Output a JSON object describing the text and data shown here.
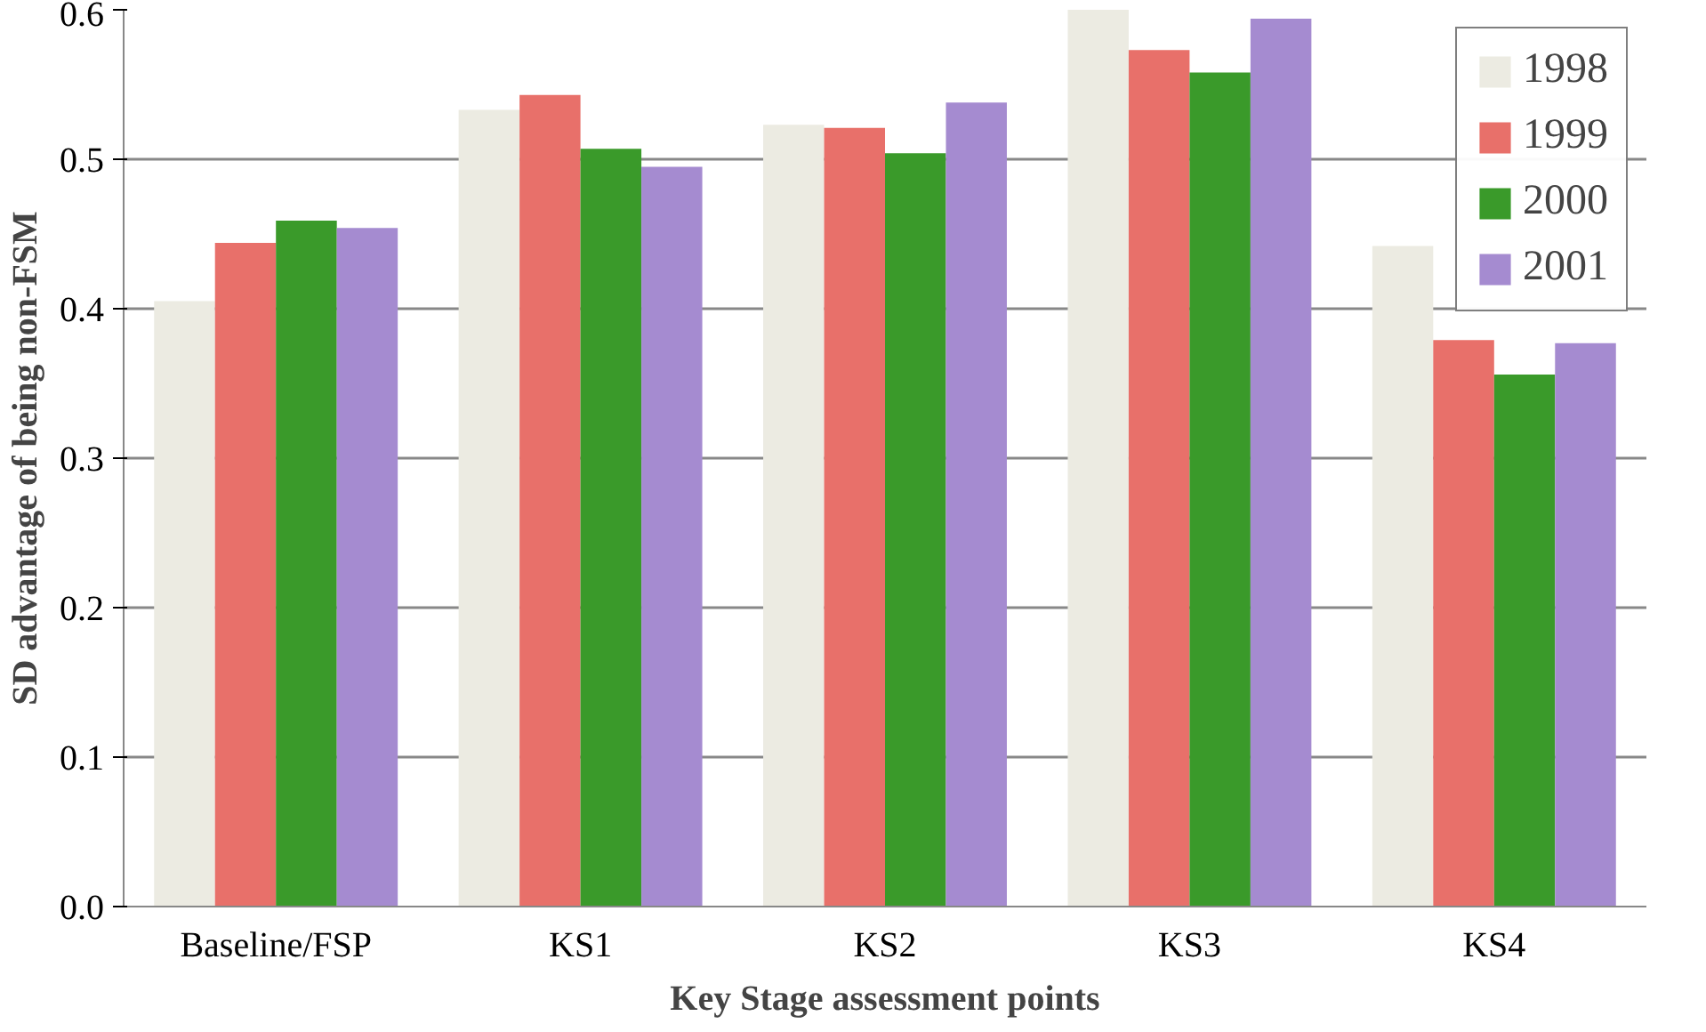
{
  "chart_data": {
    "type": "bar",
    "xlabel": "Key Stage assessment points",
    "ylabel": "SD advantage of being non-FSM",
    "categories": [
      "Baseline/FSP",
      "KS1",
      "KS2",
      "KS3",
      "KS4"
    ],
    "series": [
      {
        "name": "1998",
        "color": "#ecebe2",
        "values": [
          0.405,
          0.533,
          0.523,
          0.6,
          0.442
        ]
      },
      {
        "name": "1999",
        "color": "#e8706a",
        "values": [
          0.444,
          0.543,
          0.521,
          0.573,
          0.379
        ]
      },
      {
        "name": "2000",
        "color": "#3a9a2a",
        "values": [
          0.459,
          0.507,
          0.504,
          0.558,
          0.356
        ]
      },
      {
        "name": "2001",
        "color": "#a58bd0",
        "values": [
          0.454,
          0.495,
          0.538,
          0.594,
          0.377
        ]
      }
    ],
    "ylim": [
      0,
      0.6
    ],
    "yticks": [
      {
        "value": 0,
        "label": "0.0"
      },
      0.1,
      0.2,
      0.3,
      0.4,
      0.5,
      0.6
    ],
    "grid": "y",
    "legend": "top right"
  }
}
